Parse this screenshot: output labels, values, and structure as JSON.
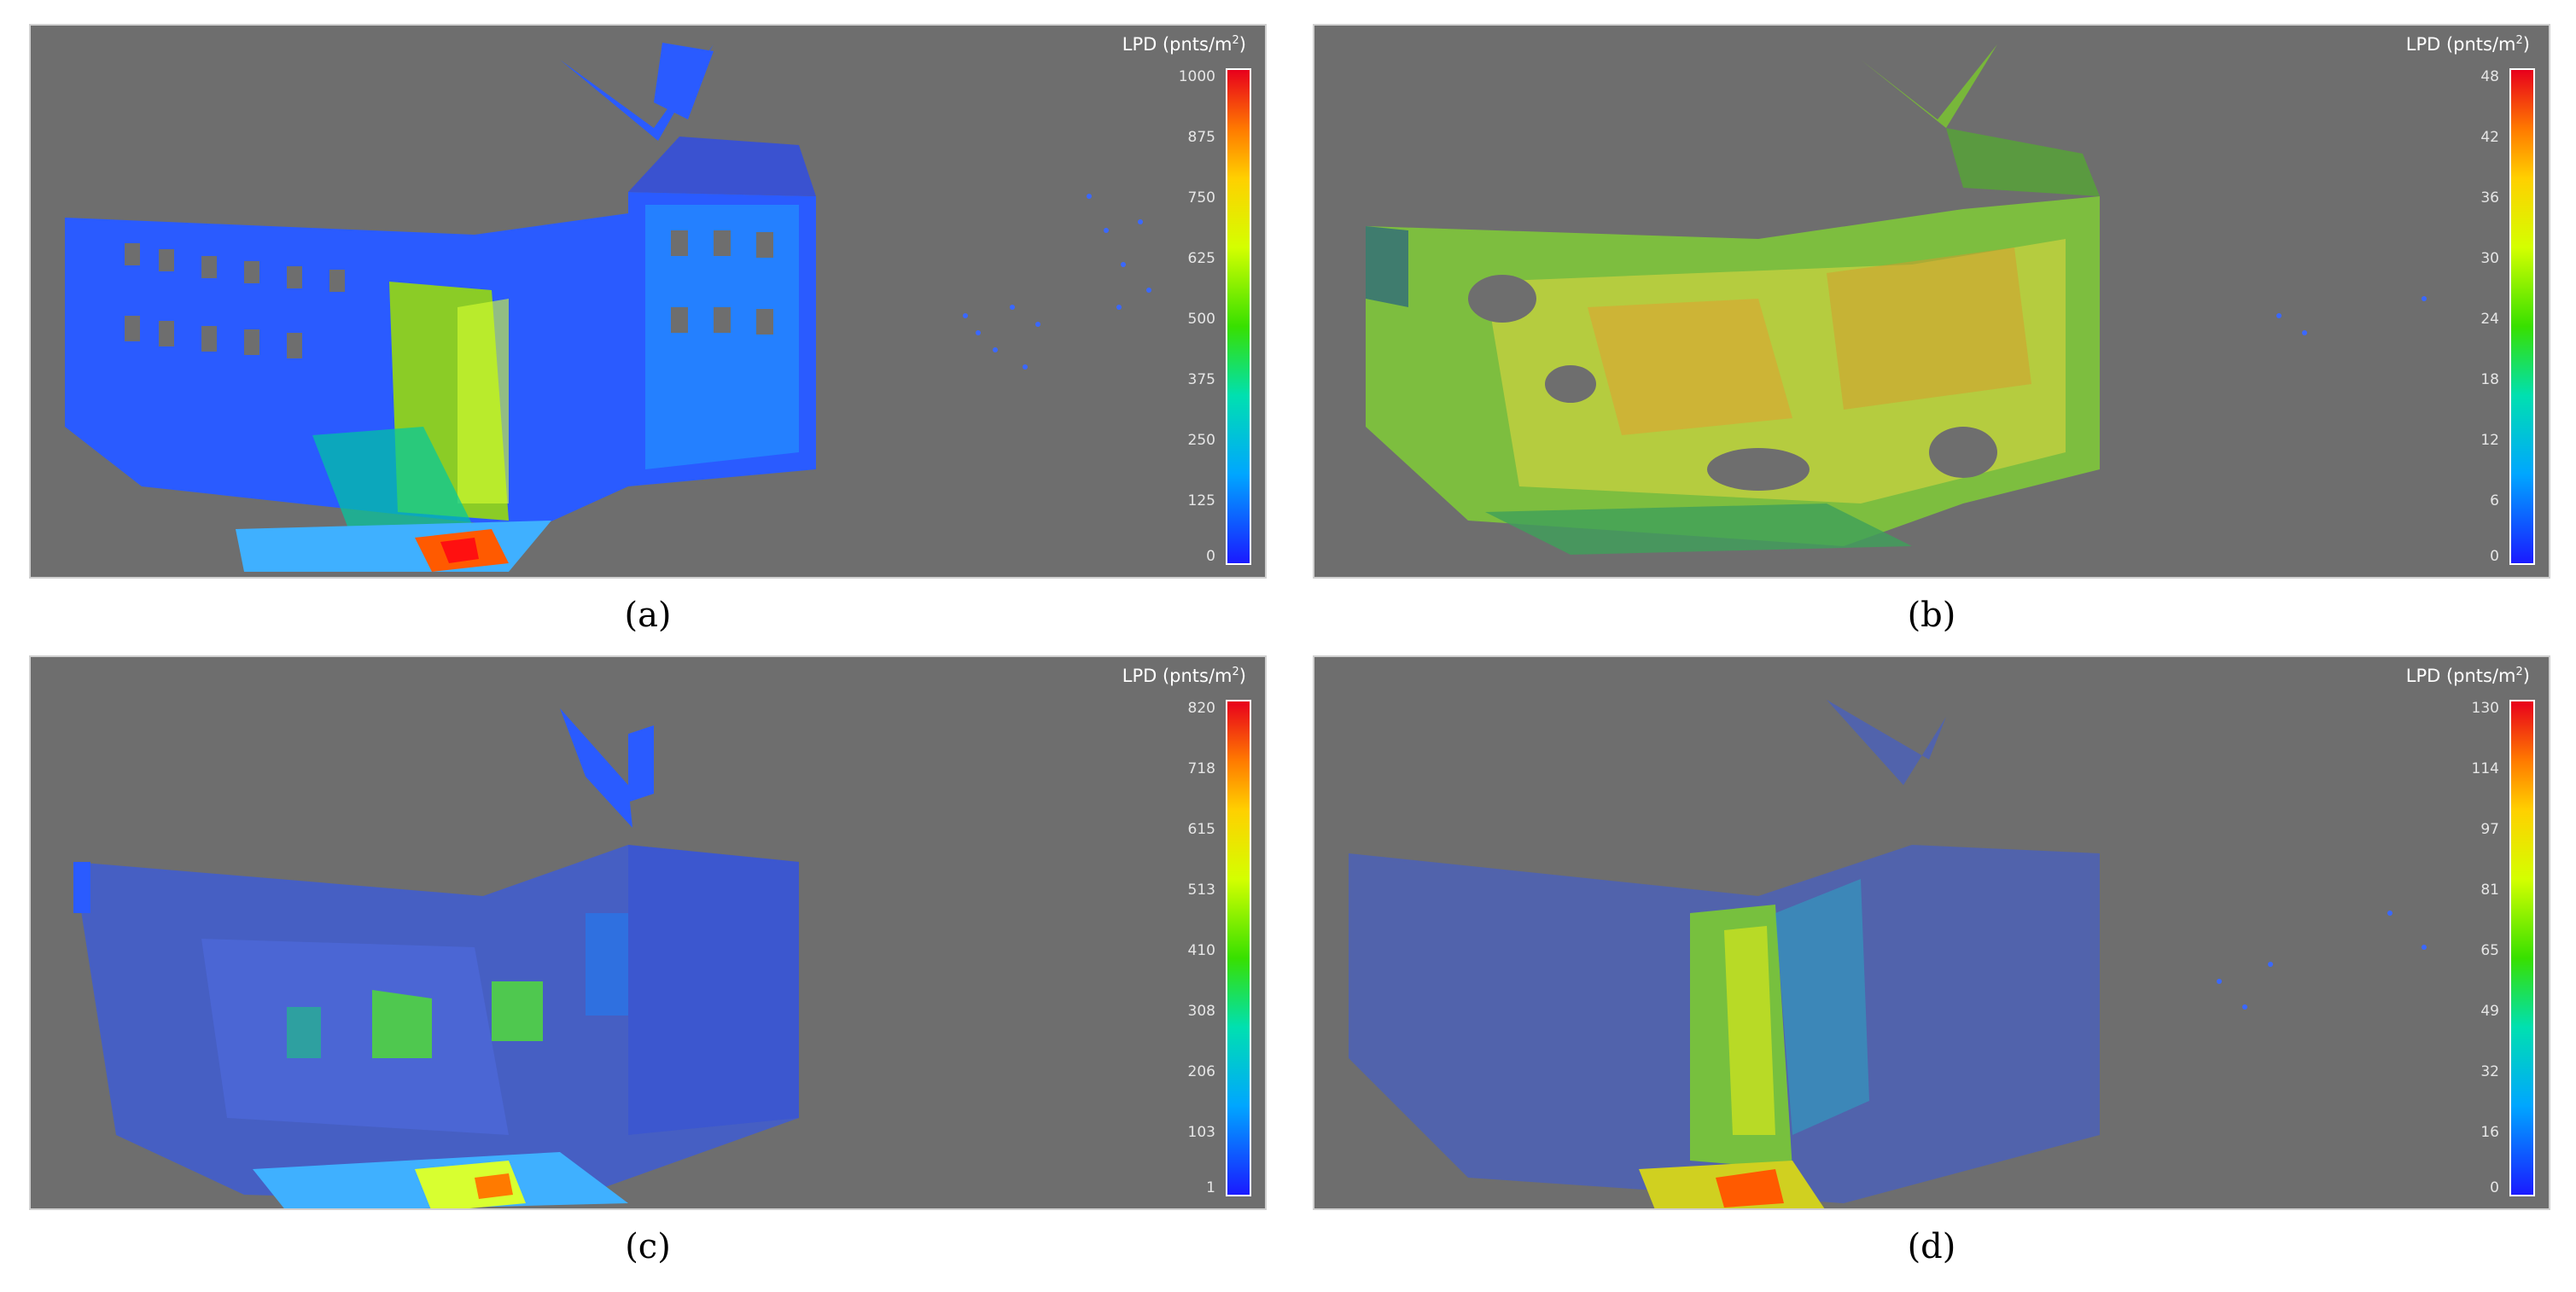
{
  "legend_title": "LPD (pnts/m",
  "legend_sup": "2",
  "legend_close": ")",
  "panels": [
    {
      "caption": "(a)",
      "ticks": [
        "1000",
        "875",
        "750",
        "625",
        "500",
        "375",
        "250",
        "125",
        "0"
      ]
    },
    {
      "caption": "(b)",
      "ticks": [
        "48",
        "42",
        "36",
        "30",
        "24",
        "18",
        "12",
        "6",
        "0"
      ]
    },
    {
      "caption": "(c)",
      "ticks": [
        "820",
        "718",
        "615",
        "513",
        "410",
        "308",
        "206",
        "103",
        "1"
      ]
    },
    {
      "caption": "(d)",
      "ticks": [
        "130",
        "114",
        "97",
        "81",
        "65",
        "49",
        "32",
        "16",
        "0"
      ]
    }
  ],
  "colormap": {
    "low": "#1a1aff",
    "mid_low": "#00a6ff",
    "mid": "#38e000",
    "mid_high": "#ffd000",
    "high": "#e8001c",
    "background": "#6e6e6e"
  }
}
